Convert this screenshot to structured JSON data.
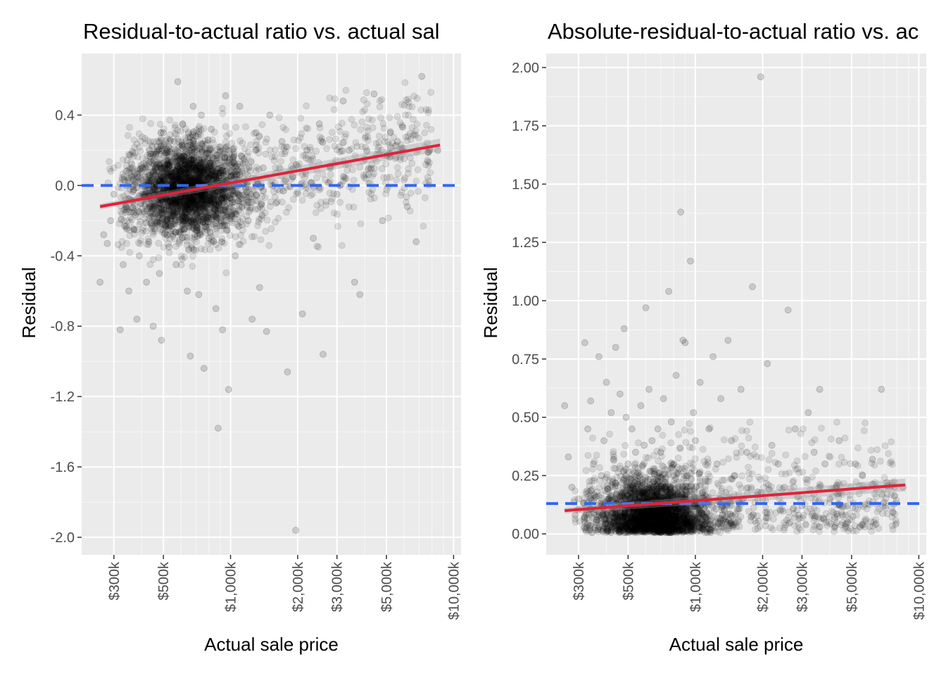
{
  "chart_data": [
    {
      "type": "scatter",
      "title": "Residual-to-actual ratio vs. actual sal",
      "xlabel": "Actual sale price",
      "ylabel": "Residual",
      "x_scale": "log10",
      "xlim": [
        215000,
        10800000
      ],
      "ylim": [
        -2.1,
        0.75
      ],
      "x_ticks": [
        300000,
        500000,
        1000000,
        2000000,
        3000000,
        5000000,
        10000000
      ],
      "x_tick_labels": [
        "$300k",
        "$500k",
        "$1,000k",
        "$2,000k",
        "$3,000k",
        "$5,000k",
        "$10,000k"
      ],
      "y_ticks": [
        -2.0,
        -1.6,
        -1.2,
        -0.8,
        -0.4,
        0.0,
        0.4
      ],
      "y_tick_labels": [
        "-2.0",
        "-1.6",
        "-1.2",
        "-0.8",
        "-0.4",
        "0.0",
        "0.4"
      ],
      "grid": true,
      "reference_line": {
        "y": 0.0,
        "style": "dashed",
        "color": "#3366ee"
      },
      "fit_line": {
        "x": [
          260000,
          8700000
        ],
        "y": [
          -0.12,
          0.23
        ],
        "color": "#e0223a"
      },
      "series": [
        {
          "color": "#000000",
          "opacity": 0.15,
          "points": [
            [
              260000,
              -0.55
            ],
            [
              270000,
              -0.28
            ],
            [
              280000,
              -0.33
            ],
            [
              290000,
              -0.2
            ],
            [
              300000,
              -0.05
            ],
            [
              320000,
              -0.82
            ],
            [
              330000,
              -0.45
            ],
            [
              340000,
              -0.12
            ],
            [
              350000,
              -0.6
            ],
            [
              360000,
              0.05
            ],
            [
              370000,
              -0.25
            ],
            [
              380000,
              -0.76
            ],
            [
              390000,
              -0.4
            ],
            [
              400000,
              0.1
            ],
            [
              410000,
              -0.15
            ],
            [
              420000,
              -0.55
            ],
            [
              430000,
              -0.32
            ],
            [
              440000,
              0.18
            ],
            [
              450000,
              -0.8
            ],
            [
              460000,
              -0.05
            ],
            [
              470000,
              0.22
            ],
            [
              480000,
              -0.5
            ],
            [
              490000,
              -0.88
            ],
            [
              500000,
              0.3
            ],
            [
              510000,
              -0.2
            ],
            [
              520000,
              0.12
            ],
            [
              530000,
              -0.35
            ],
            [
              540000,
              0.05
            ],
            [
              550000,
              -0.1
            ],
            [
              560000,
              0.25
            ],
            [
              570000,
              -0.45
            ],
            [
              580000,
              0.59
            ],
            [
              590000,
              -0.18
            ],
            [
              600000,
              0.08
            ],
            [
              610000,
              0.35
            ],
            [
              620000,
              -0.25
            ],
            [
              630000,
              0.02
            ],
            [
              640000,
              -0.6
            ],
            [
              650000,
              0.15
            ],
            [
              660000,
              -0.97
            ],
            [
              680000,
              0.45
            ],
            [
              690000,
              -0.08
            ],
            [
              700000,
              0.28
            ],
            [
              720000,
              -0.62
            ],
            [
              740000,
              0.4
            ],
            [
              760000,
              -1.04
            ],
            [
              780000,
              0.1
            ],
            [
              800000,
              -0.3
            ],
            [
              820000,
              0.32
            ],
            [
              840000,
              -0.05
            ],
            [
              860000,
              -0.7
            ],
            [
              880000,
              -1.38
            ],
            [
              900000,
              0.22
            ],
            [
              920000,
              -0.82
            ],
            [
              950000,
              0.51
            ],
            [
              980000,
              -1.16
            ],
            [
              1000000,
              0.05
            ],
            [
              1050000,
              -0.4
            ],
            [
              1100000,
              0.45
            ],
            [
              1150000,
              0.15
            ],
            [
              1200000,
              -0.2
            ],
            [
              1250000,
              -0.76
            ],
            [
              1300000,
              0.3
            ],
            [
              1350000,
              -0.58
            ],
            [
              1400000,
              0.1
            ],
            [
              1450000,
              -0.83
            ],
            [
              1500000,
              0.4
            ],
            [
              1600000,
              -0.1
            ],
            [
              1700000,
              0.25
            ],
            [
              1800000,
              -1.06
            ],
            [
              1900000,
              0.05
            ],
            [
              1960000,
              -1.96
            ],
            [
              2100000,
              -0.73
            ],
            [
              2200000,
              0.2
            ],
            [
              2350000,
              -0.3
            ],
            [
              2500000,
              0.35
            ],
            [
              2600000,
              -0.96
            ],
            [
              2800000,
              0.1
            ],
            [
              3000000,
              -0.05
            ],
            [
              3200000,
              0.48
            ],
            [
              3400000,
              0.2
            ],
            [
              3600000,
              -0.55
            ],
            [
              3800000,
              -0.62
            ],
            [
              4000000,
              0.15
            ],
            [
              4400000,
              0.52
            ],
            [
              4800000,
              -0.2
            ],
            [
              5200000,
              0.3
            ],
            [
              5600000,
              0.25
            ],
            [
              6200000,
              -0.12
            ],
            [
              6800000,
              -0.32
            ],
            [
              7200000,
              0.62
            ],
            [
              7800000,
              0.2
            ],
            [
              8500000,
              0.2
            ]
          ]
        }
      ]
    },
    {
      "type": "scatter",
      "title": "Absolute-residual-to-actual ratio vs. ac",
      "xlabel": "Actual sale price",
      "ylabel": "Residual",
      "x_scale": "log10",
      "xlim": [
        215000,
        10800000
      ],
      "ylim": [
        -0.09,
        2.06
      ],
      "x_ticks": [
        300000,
        500000,
        1000000,
        2000000,
        3000000,
        5000000,
        10000000
      ],
      "x_tick_labels": [
        "$300k",
        "$500k",
        "$1,000k",
        "$2,000k",
        "$3,000k",
        "$5,000k",
        "$10,000k"
      ],
      "y_ticks": [
        0.0,
        0.25,
        0.5,
        0.75,
        1.0,
        1.25,
        1.5,
        1.75,
        2.0
      ],
      "y_tick_labels": [
        "0.00",
        "0.25",
        "0.50",
        "0.75",
        "1.00",
        "1.25",
        "1.50",
        "1.75",
        "2.00"
      ],
      "grid": true,
      "reference_line": {
        "y": 0.13,
        "style": "dashed",
        "color": "#3366ee"
      },
      "fit_line": {
        "x": [
          260000,
          8700000
        ],
        "y": [
          0.1,
          0.21
        ],
        "color": "#e0223a"
      },
      "series": [
        {
          "color": "#000000",
          "opacity": 0.15,
          "points": [
            [
              260000,
              0.55
            ],
            [
              270000,
              0.33
            ],
            [
              280000,
              0.2
            ],
            [
              290000,
              0.08
            ],
            [
              300000,
              0.15
            ],
            [
              320000,
              0.82
            ],
            [
              330000,
              0.45
            ],
            [
              340000,
              0.57
            ],
            [
              350000,
              0.3
            ],
            [
              360000,
              0.05
            ],
            [
              370000,
              0.76
            ],
            [
              380000,
              0.25
            ],
            [
              390000,
              0.4
            ],
            [
              400000,
              0.65
            ],
            [
              410000,
              0.15
            ],
            [
              420000,
              0.52
            ],
            [
              430000,
              0.32
            ],
            [
              440000,
              0.8
            ],
            [
              450000,
              0.1
            ],
            [
              460000,
              0.6
            ],
            [
              470000,
              0.22
            ],
            [
              480000,
              0.88
            ],
            [
              490000,
              0.5
            ],
            [
              500000,
              0.3
            ],
            [
              510000,
              0.12
            ],
            [
              520000,
              0.45
            ],
            [
              530000,
              0.05
            ],
            [
              540000,
              0.35
            ],
            [
              550000,
              0.18
            ],
            [
              560000,
              0.25
            ],
            [
              570000,
              0.55
            ],
            [
              580000,
              0.08
            ],
            [
              590000,
              0.38
            ],
            [
              600000,
              0.97
            ],
            [
              610000,
              0.15
            ],
            [
              620000,
              0.62
            ],
            [
              630000,
              0.02
            ],
            [
              640000,
              0.4
            ],
            [
              650000,
              0.28
            ],
            [
              660000,
              0.1
            ],
            [
              680000,
              0.45
            ],
            [
              700000,
              0.35
            ],
            [
              720000,
              0.58
            ],
            [
              740000,
              0.12
            ],
            [
              760000,
              1.04
            ],
            [
              780000,
              0.48
            ],
            [
              800000,
              0.3
            ],
            [
              820000,
              0.68
            ],
            [
              840000,
              0.2
            ],
            [
              860000,
              1.38
            ],
            [
              880000,
              0.83
            ],
            [
              900000,
              0.82
            ],
            [
              920000,
              0.25
            ],
            [
              950000,
              1.17
            ],
            [
              980000,
              0.52
            ],
            [
              1000000,
              0.4
            ],
            [
              1050000,
              0.65
            ],
            [
              1100000,
              0.15
            ],
            [
              1150000,
              0.45
            ],
            [
              1200000,
              0.76
            ],
            [
              1250000,
              0.3
            ],
            [
              1300000,
              0.58
            ],
            [
              1350000,
              0.1
            ],
            [
              1400000,
              0.83
            ],
            [
              1450000,
              0.4
            ],
            [
              1500000,
              0.25
            ],
            [
              1600000,
              0.62
            ],
            [
              1700000,
              0.35
            ],
            [
              1800000,
              1.06
            ],
            [
              1900000,
              0.18
            ],
            [
              1960000,
              1.96
            ],
            [
              2100000,
              0.73
            ],
            [
              2200000,
              0.38
            ],
            [
              2350000,
              0.3
            ],
            [
              2500000,
              0.2
            ],
            [
              2600000,
              0.96
            ],
            [
              2800000,
              0.45
            ],
            [
              3000000,
              0.12
            ],
            [
              3200000,
              0.52
            ],
            [
              3400000,
              0.35
            ],
            [
              3600000,
              0.62
            ],
            [
              3800000,
              0.3
            ],
            [
              4000000,
              0.15
            ],
            [
              4400000,
              0.4
            ],
            [
              4800000,
              0.05
            ],
            [
              5200000,
              0.3
            ],
            [
              5600000,
              0.25
            ],
            [
              6200000,
              0.32
            ],
            [
              6800000,
              0.62
            ],
            [
              7200000,
              0.22
            ],
            [
              7800000,
              0.2
            ],
            [
              8500000,
              0.2
            ]
          ]
        }
      ]
    }
  ]
}
